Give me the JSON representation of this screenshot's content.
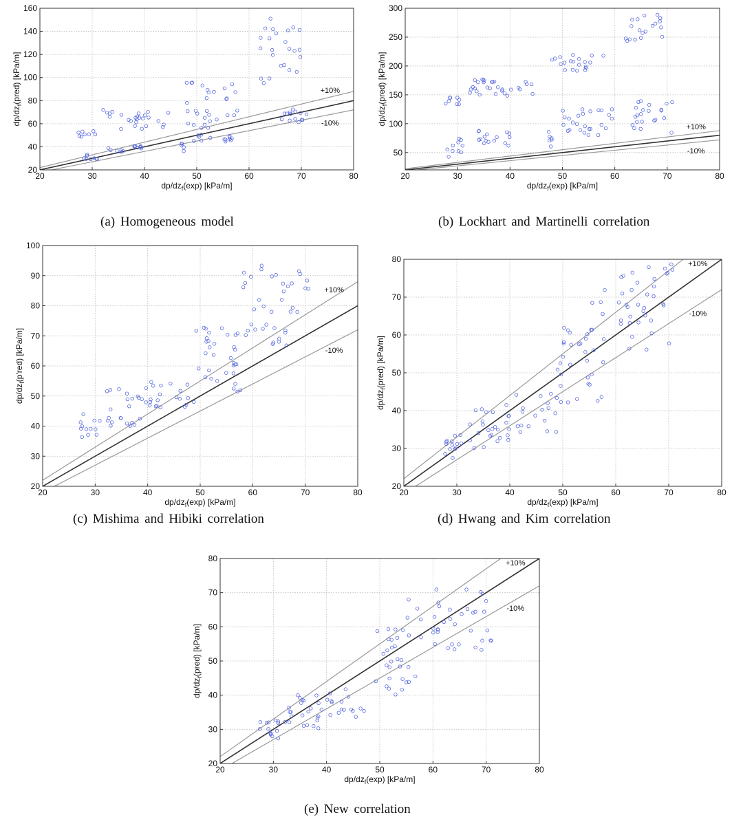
{
  "captions": [
    "(a)  Homogeneous  model",
    "(b)  Lockhart  and  Martinelli  correlation",
    "(c)  Mishima  and  Hibiki  correlation",
    "(d)  Hwang  and  Kim  correlation",
    "(e)  New  correlation"
  ],
  "colors": {
    "points": "#5566dd",
    "ideal_line": "#333333",
    "band_lines": "#999999",
    "grid": "#bbbbbb"
  },
  "chart_data": [
    {
      "type": "scatter",
      "caption": "(a)  Homogeneous  model",
      "xlabel": {
        "main": "dp/dz",
        "sub": "f",
        "rest": "(exp) [kPa/m]"
      },
      "ylabel": {
        "main": "dp/dz",
        "sub": "f",
        "rest": "(pred) [kPa/m]"
      },
      "xlim": [
        20,
        80
      ],
      "ylim": [
        20,
        160
      ],
      "xticks": [
        20,
        30,
        40,
        50,
        60,
        70,
        80
      ],
      "yticks": [
        20,
        40,
        60,
        80,
        100,
        120,
        140,
        160
      ],
      "grid": true,
      "band_labels": [
        "+10%",
        "-10%"
      ],
      "clusters": [
        {
          "x": [
            27,
            31
          ],
          "y": [
            48,
            54
          ],
          "n": 8
        },
        {
          "x": [
            28,
            31
          ],
          "y": [
            29,
            34
          ],
          "n": 8
        },
        {
          "x": [
            32,
            46
          ],
          "y": [
            55,
            72
          ],
          "n": 26
        },
        {
          "x": [
            33,
            36
          ],
          "y": [
            34,
            40
          ],
          "n": 6
        },
        {
          "x": [
            38,
            40
          ],
          "y": [
            38,
            41
          ],
          "n": 8
        },
        {
          "x": [
            47,
            48
          ],
          "y": [
            36,
            44
          ],
          "n": 6
        },
        {
          "x": [
            49,
            53
          ],
          "y": [
            45,
            60
          ],
          "n": 10
        },
        {
          "x": [
            48,
            58
          ],
          "y": [
            60,
            97
          ],
          "n": 26
        },
        {
          "x": [
            55,
            57
          ],
          "y": [
            43,
            50
          ],
          "n": 8
        },
        {
          "x": [
            62,
            70
          ],
          "y": [
            95,
            152
          ],
          "n": 24
        },
        {
          "x": [
            66,
            71
          ],
          "y": [
            60,
            73
          ],
          "n": 14
        }
      ]
    },
    {
      "type": "scatter",
      "caption": "(b)  Lockhart  and  Martinelli  correlation",
      "xlabel": {
        "main": "dp/dz",
        "sub": "f",
        "rest": "(exp) [kPa/m]"
      },
      "ylabel": {
        "main": "dp/dz",
        "sub": "f",
        "rest": "(pred) [kPa/m]"
      },
      "xlim": [
        20,
        80
      ],
      "ylim": [
        20,
        300
      ],
      "xticks": [
        20,
        30,
        40,
        50,
        60,
        70,
        80
      ],
      "yticks": [
        50,
        100,
        150,
        200,
        250,
        300
      ],
      "grid": true,
      "band_labels": [
        "+10%",
        "-10%"
      ],
      "clusters": [
        {
          "x": [
            27,
            31
          ],
          "y": [
            133,
            148
          ],
          "n": 8
        },
        {
          "x": [
            28,
            31
          ],
          "y": [
            40,
            75
          ],
          "n": 10
        },
        {
          "x": [
            32,
            45
          ],
          "y": [
            148,
            177
          ],
          "n": 30
        },
        {
          "x": [
            33,
            40
          ],
          "y": [
            62,
            90
          ],
          "n": 16
        },
        {
          "x": [
            47,
            48
          ],
          "y": [
            60,
            90
          ],
          "n": 6
        },
        {
          "x": [
            48,
            58
          ],
          "y": [
            185,
            225
          ],
          "n": 20
        },
        {
          "x": [
            49,
            60
          ],
          "y": [
            80,
            125
          ],
          "n": 26
        },
        {
          "x": [
            62,
            70
          ],
          "y": [
            238,
            290
          ],
          "n": 20
        },
        {
          "x": [
            63,
            71
          ],
          "y": [
            80,
            140
          ],
          "n": 22
        }
      ]
    },
    {
      "type": "scatter",
      "caption": "(c)  Mishima  and  Hibiki  correlation",
      "xlabel": {
        "main": "dp/dz",
        "sub": "f",
        "rest": "(exp) [kPa/m]"
      },
      "ylabel": {
        "main": "dp/dz",
        "sub": "f",
        "rest": "(p'red) [kPa/m]"
      },
      "xlim": [
        20,
        80
      ],
      "ylim": [
        20,
        100
      ],
      "xticks": [
        20,
        30,
        40,
        50,
        60,
        70,
        80
      ],
      "yticks": [
        20,
        30,
        40,
        50,
        60,
        70,
        80,
        90,
        100
      ],
      "grid": true,
      "band_labels": [
        "+10%",
        "-10%"
      ],
      "clusters": [
        {
          "x": [
            27,
            31
          ],
          "y": [
            36,
            44
          ],
          "n": 12
        },
        {
          "x": [
            32,
            40
          ],
          "y": [
            40,
            53
          ],
          "n": 24
        },
        {
          "x": [
            40,
            49
          ],
          "y": [
            46,
            55
          ],
          "n": 20
        },
        {
          "x": [
            49,
            58
          ],
          "y": [
            55,
            73
          ],
          "n": 28
        },
        {
          "x": [
            56,
            58
          ],
          "y": [
            50,
            55
          ],
          "n": 4
        },
        {
          "x": [
            57,
            71
          ],
          "y": [
            66,
            94
          ],
          "n": 40
        }
      ]
    },
    {
      "type": "scatter",
      "caption": "(d)  Hwang  and  Kim  correlation",
      "xlabel": {
        "main": "dp/dz",
        "sub": "f",
        "rest": "(exp) [kPa/m]"
      },
      "ylabel": {
        "main": "dp/dz",
        "sub": "f",
        "rest": "(pred) [kPa/m]"
      },
      "xlim": [
        20,
        80
      ],
      "ylim": [
        20,
        80
      ],
      "xticks": [
        20,
        30,
        40,
        50,
        60,
        70,
        80
      ],
      "yticks": [
        20,
        30,
        40,
        50,
        60,
        70,
        80
      ],
      "grid": true,
      "band_labels": [
        "+10%",
        "-10%"
      ],
      "clusters": [
        {
          "x": [
            27,
            31
          ],
          "y": [
            26,
            34
          ],
          "n": 14
        },
        {
          "x": [
            32,
            40
          ],
          "y": [
            29,
            42
          ],
          "n": 26
        },
        {
          "x": [
            40,
            49
          ],
          "y": [
            34,
            45
          ],
          "n": 18
        },
        {
          "x": [
            49,
            58
          ],
          "y": [
            41,
            62
          ],
          "n": 30
        },
        {
          "x": [
            55,
            58
          ],
          "y": [
            58,
            75
          ],
          "n": 6
        },
        {
          "x": [
            60,
            71
          ],
          "y": [
            56,
            79
          ],
          "n": 36
        }
      ]
    },
    {
      "type": "scatter",
      "caption": "(e)  New  correlation",
      "xlabel": {
        "main": "dp/dz",
        "sub": "f",
        "rest": "(exp) [kPa/m]"
      },
      "ylabel": {
        "main": "dp/dz",
        "sub": "f",
        "rest": "(pred) [kPa/m]"
      },
      "xlim": [
        20,
        80
      ],
      "ylim": [
        20,
        80
      ],
      "xticks": [
        20,
        30,
        40,
        50,
        60,
        70,
        80
      ],
      "yticks": [
        20,
        30,
        40,
        50,
        60,
        70,
        80
      ],
      "grid": true,
      "band_labels": [
        "+10%",
        "-10%"
      ],
      "clusters": [
        {
          "x": [
            27,
            31
          ],
          "y": [
            27,
            33
          ],
          "n": 14
        },
        {
          "x": [
            32,
            40
          ],
          "y": [
            30,
            40
          ],
          "n": 24
        },
        {
          "x": [
            40,
            49
          ],
          "y": [
            33,
            42
          ],
          "n": 16
        },
        {
          "x": [
            49,
            58
          ],
          "y": [
            40,
            60
          ],
          "n": 30
        },
        {
          "x": [
            55,
            58
          ],
          "y": [
            62,
            69
          ],
          "n": 4
        },
        {
          "x": [
            60,
            71
          ],
          "y": [
            53,
            71
          ],
          "n": 34
        }
      ]
    }
  ]
}
